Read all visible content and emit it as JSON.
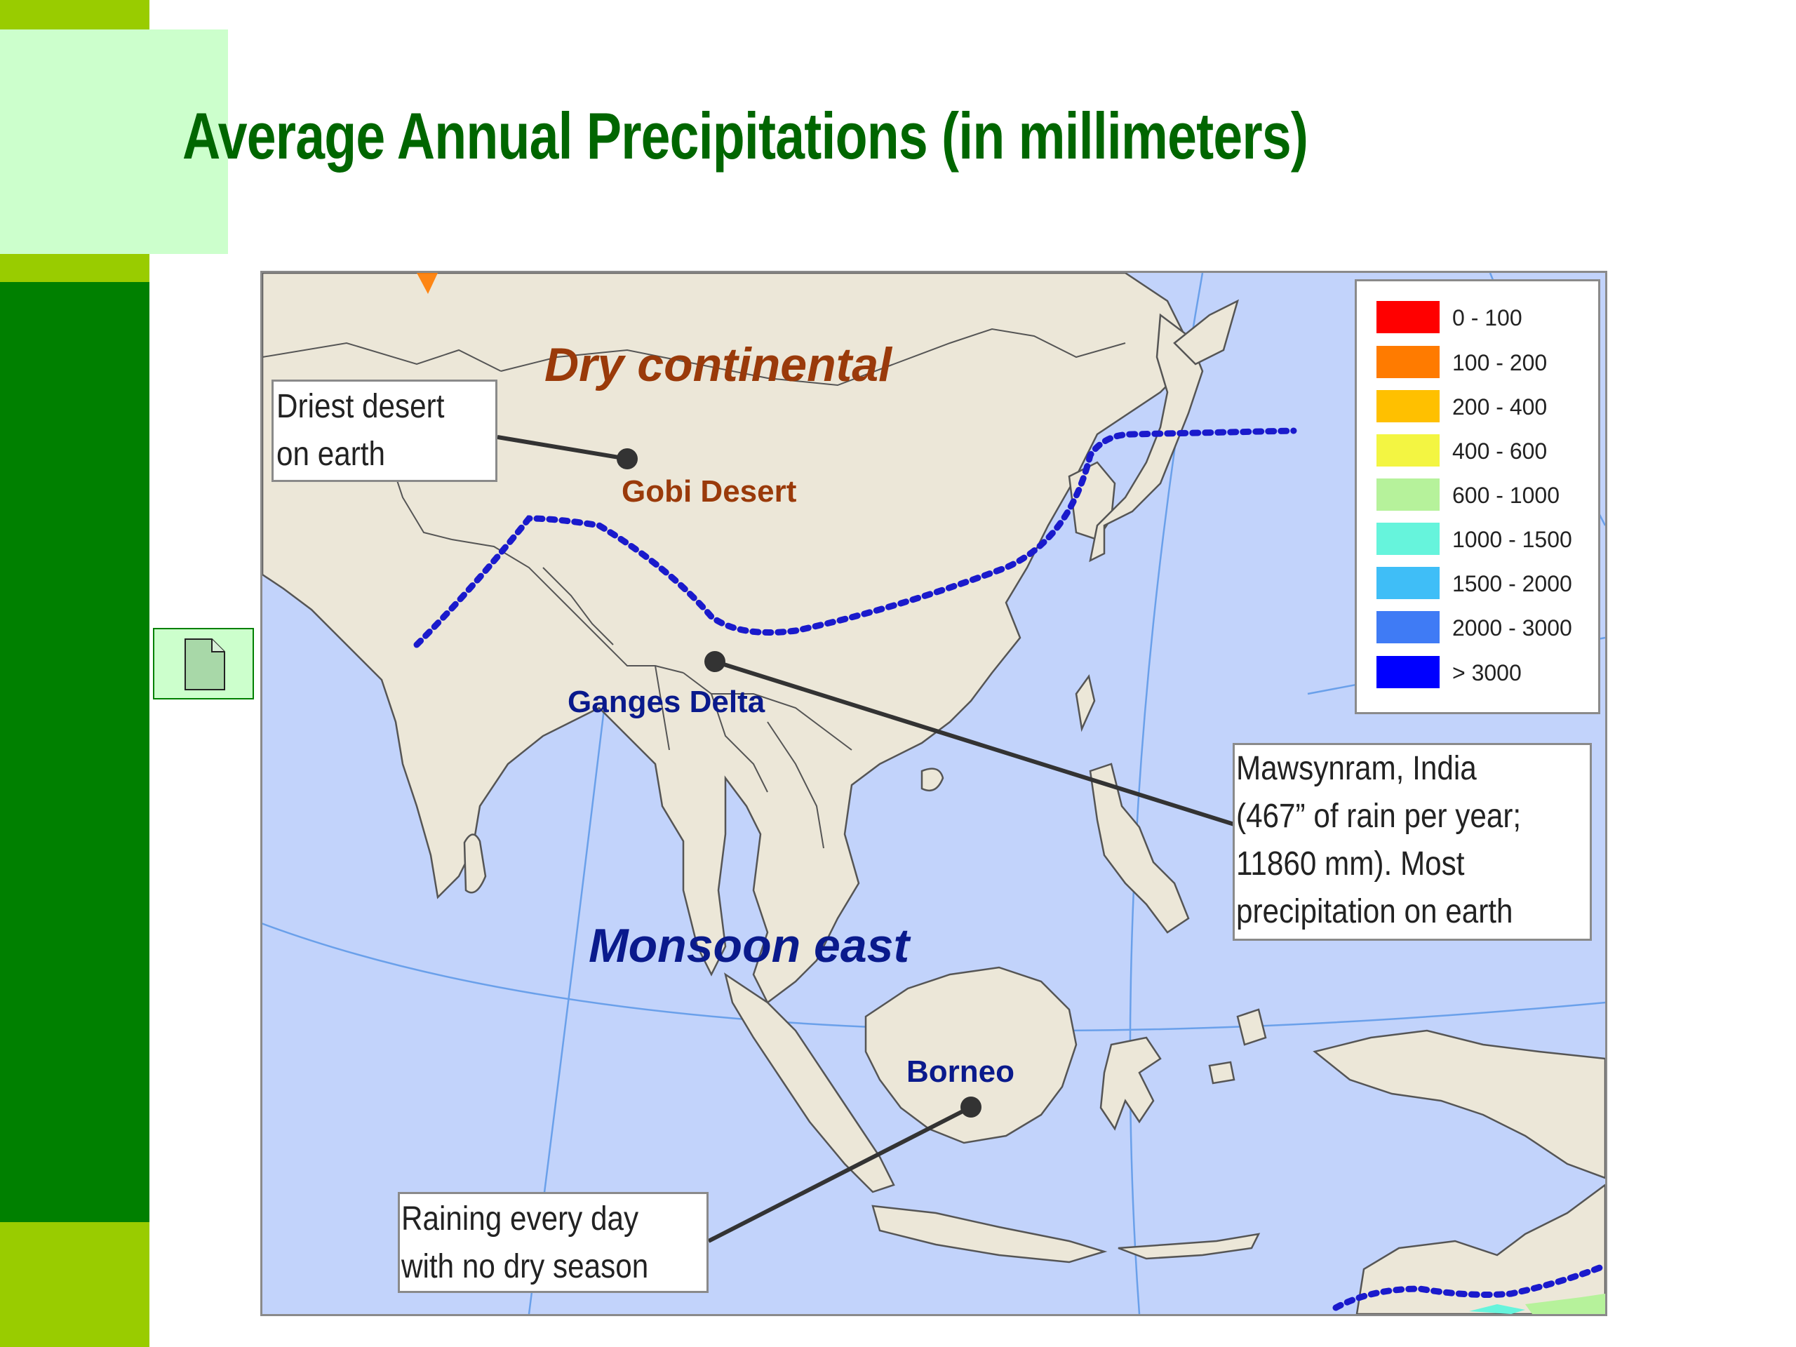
{
  "slide": {
    "title": "Average Annual Precipitations (in millimeters)"
  },
  "map": {
    "regions": {
      "dry": "Dry continental",
      "monsoon": "Monsoon east"
    },
    "places": {
      "gobi": "Gobi Desert",
      "ganges": "Ganges Delta",
      "borneo": "Borneo"
    },
    "callouts": {
      "desert": [
        "Driest desert",
        "on earth"
      ],
      "mawsynram": [
        "Mawsynram, India",
        "(467” of rain per year;",
        "11860 mm). Most",
        "precipitation on earth"
      ],
      "borneo": [
        "Raining every day",
        "with no dry season"
      ]
    },
    "legend": [
      {
        "label": "0 - 100",
        "color": "#ff0000"
      },
      {
        "label": "100 - 200",
        "color": "#ff7b00"
      },
      {
        "label": "200 - 400",
        "color": "#ffc000"
      },
      {
        "label": "400 - 600",
        "color": "#f3f542"
      },
      {
        "label": "600 - 1000",
        "color": "#b6f29b"
      },
      {
        "label": "1000 - 1500",
        "color": "#66f4dc"
      },
      {
        "label": "1500 - 2000",
        "color": "#3fbef7"
      },
      {
        "label": "2000 - 3000",
        "color": "#3f7bf5"
      },
      {
        "label": "> 3000",
        "color": "#0000ff"
      }
    ],
    "colors": {
      "land": "#ece7d8",
      "ocean": "#c2d3fb",
      "border": "#555555",
      "monsoon_line": "#1a1acc"
    }
  },
  "icons": {
    "doc": "document-icon"
  }
}
